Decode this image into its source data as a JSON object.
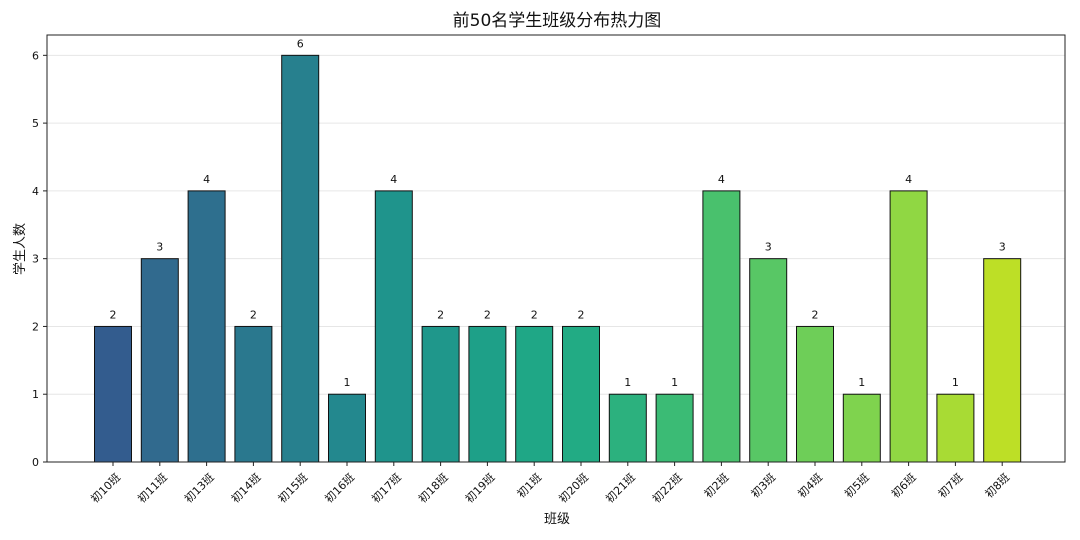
{
  "chart_data": {
    "type": "bar",
    "title": "前50名学生班级分布热力图",
    "xlabel": "班级",
    "ylabel": "学生人数",
    "categories": [
      "初10班",
      "初11班",
      "初13班",
      "初14班",
      "初15班",
      "初16班",
      "初17班",
      "初18班",
      "初19班",
      "初1班",
      "初20班",
      "初21班",
      "初22班",
      "初2班",
      "初3班",
      "初4班",
      "初5班",
      "初6班",
      "初7班",
      "初8班"
    ],
    "values": [
      2,
      3,
      4,
      2,
      6,
      1,
      4,
      2,
      2,
      2,
      2,
      1,
      1,
      4,
      3,
      2,
      1,
      4,
      1,
      3
    ],
    "ylim": [
      0,
      6.3
    ],
    "yticks": [
      0,
      1,
      2,
      3,
      4,
      5,
      6
    ],
    "grid": true,
    "colors": [
      "#335c8e",
      "#316a8e",
      "#2e6f8e",
      "#2a788e",
      "#27808e",
      "#23888e",
      "#1f948c",
      "#1f978b",
      "#1ea088",
      "#1fa786",
      "#22ab84",
      "#2cb17e",
      "#3bbb75",
      "#49c16d",
      "#58c765",
      "#6ece58",
      "#7fd34e",
      "#90d743",
      "#a8db34",
      "#bddf26"
    ]
  }
}
